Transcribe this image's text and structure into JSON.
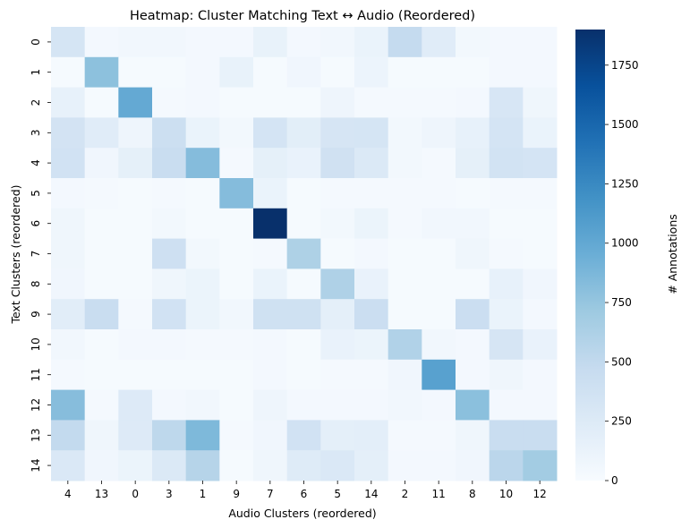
{
  "chart_data": {
    "type": "heatmap",
    "title": "Heatmap: Cluster Matching Text ↔ Audio (Reordered)",
    "xlabel": "Audio Clusters (reordered)",
    "ylabel": "Text Clusters (reordered)",
    "x_categories": [
      "4",
      "13",
      "0",
      "3",
      "1",
      "9",
      "7",
      "6",
      "5",
      "14",
      "2",
      "11",
      "8",
      "10",
      "12"
    ],
    "y_categories": [
      "0",
      "1",
      "2",
      "3",
      "4",
      "5",
      "6",
      "7",
      "8",
      "9",
      "10",
      "11",
      "12",
      "13",
      "14"
    ],
    "values": [
      [
        330,
        40,
        60,
        60,
        40,
        40,
        140,
        40,
        60,
        120,
        480,
        220,
        50,
        40,
        40
      ],
      [
        20,
        790,
        20,
        20,
        40,
        140,
        20,
        70,
        20,
        100,
        20,
        20,
        20,
        40,
        40
      ],
      [
        150,
        20,
        990,
        30,
        40,
        20,
        20,
        20,
        90,
        30,
        30,
        30,
        40,
        310,
        80
      ],
      [
        350,
        220,
        90,
        420,
        120,
        50,
        340,
        200,
        320,
        330,
        50,
        90,
        150,
        340,
        120
      ],
      [
        370,
        70,
        170,
        450,
        830,
        30,
        170,
        130,
        380,
        270,
        50,
        30,
        170,
        360,
        340
      ],
      [
        40,
        30,
        20,
        30,
        20,
        830,
        120,
        20,
        30,
        30,
        30,
        30,
        20,
        30,
        30
      ],
      [
        80,
        20,
        20,
        50,
        20,
        20,
        1900,
        20,
        50,
        110,
        30,
        60,
        60,
        20,
        20
      ],
      [
        80,
        20,
        20,
        400,
        50,
        20,
        30,
        620,
        20,
        40,
        20,
        20,
        80,
        30,
        20
      ],
      [
        70,
        20,
        20,
        80,
        110,
        20,
        120,
        20,
        610,
        130,
        20,
        20,
        20,
        150,
        70
      ],
      [
        210,
        450,
        30,
        370,
        110,
        60,
        390,
        390,
        180,
        430,
        20,
        20,
        430,
        120,
        40
      ],
      [
        60,
        20,
        40,
        40,
        30,
        30,
        40,
        20,
        130,
        110,
        600,
        60,
        40,
        320,
        130
      ],
      [
        30,
        20,
        20,
        20,
        20,
        20,
        40,
        20,
        30,
        30,
        70,
        1060,
        40,
        80,
        40
      ],
      [
        820,
        30,
        250,
        40,
        60,
        20,
        90,
        40,
        40,
        40,
        60,
        40,
        800,
        40,
        40
      ],
      [
        490,
        80,
        250,
        520,
        860,
        30,
        70,
        370,
        180,
        190,
        30,
        30,
        80,
        450,
        450
      ],
      [
        280,
        70,
        110,
        270,
        570,
        20,
        80,
        240,
        280,
        180,
        40,
        40,
        70,
        540,
        680
      ]
    ],
    "colorbar": {
      "label": "# Annotations",
      "min": 0,
      "max": 1900,
      "ticks": [
        0,
        250,
        500,
        750,
        1000,
        1250,
        1500,
        1750
      ]
    },
    "colormap": [
      "#f7fbff",
      "#deebf7",
      "#c6dbef",
      "#9ecae1",
      "#6baed6",
      "#4292c6",
      "#2171b5",
      "#08519c",
      "#08306b"
    ]
  }
}
